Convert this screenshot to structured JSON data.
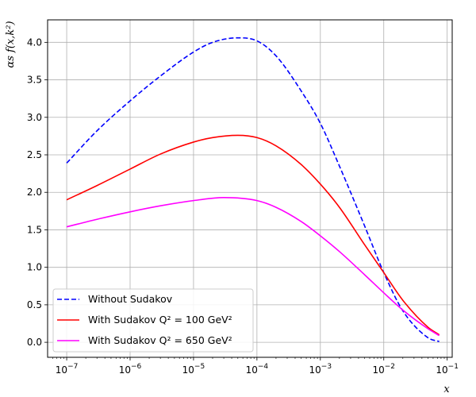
{
  "chart_data": {
    "type": "line",
    "xscale": "log",
    "xlim": [
      5e-08,
      0.12
    ],
    "ylim": [
      -0.2,
      4.3
    ],
    "xlabel": "x",
    "ylabel": "αs f(x,k²)",
    "grid": true,
    "legend_position": "lower-left",
    "x_ticks": [
      {
        "value": 1e-07,
        "base": "10",
        "exp": "−7"
      },
      {
        "value": 1e-06,
        "base": "10",
        "exp": "−6"
      },
      {
        "value": 1e-05,
        "base": "10",
        "exp": "−5"
      },
      {
        "value": 0.0001,
        "base": "10",
        "exp": "−4"
      },
      {
        "value": 0.001,
        "base": "10",
        "exp": "−3"
      },
      {
        "value": 0.01,
        "base": "10",
        "exp": "−2"
      },
      {
        "value": 0.1,
        "base": "10",
        "exp": "−1"
      }
    ],
    "y_ticks": [
      {
        "value": 0.0,
        "label": "0.0"
      },
      {
        "value": 0.5,
        "label": "0.5"
      },
      {
        "value": 1.0,
        "label": "1.0"
      },
      {
        "value": 1.5,
        "label": "1.5"
      },
      {
        "value": 2.0,
        "label": "2.0"
      },
      {
        "value": 2.5,
        "label": "2.5"
      },
      {
        "value": 3.0,
        "label": "3.0"
      },
      {
        "value": 3.5,
        "label": "3.5"
      },
      {
        "value": 4.0,
        "label": "4.0"
      }
    ],
    "series": [
      {
        "name": "Without Sudakov",
        "color": "#0000ff",
        "dash": true,
        "x": [
          1e-07,
          3e-07,
          1e-06,
          3e-06,
          1e-05,
          2e-05,
          5e-05,
          0.0001,
          0.0002,
          0.0005,
          0.001,
          0.002,
          0.005,
          0.01,
          0.02,
          0.05,
          0.075
        ],
        "y": [
          2.39,
          2.82,
          3.22,
          3.55,
          3.87,
          4.0,
          4.06,
          4.02,
          3.82,
          3.35,
          2.92,
          2.35,
          1.55,
          0.93,
          0.42,
          0.06,
          0.01
        ]
      },
      {
        "name": "With Sudakov",
        "legend_math": "Q² = 100 GeV²",
        "color": "#ff0000",
        "dash": false,
        "x": [
          1e-07,
          3e-07,
          1e-06,
          3e-06,
          1e-05,
          2e-05,
          5e-05,
          0.0001,
          0.0002,
          0.0005,
          0.001,
          0.002,
          0.005,
          0.01,
          0.02,
          0.05,
          0.075
        ],
        "y": [
          1.9,
          2.09,
          2.31,
          2.51,
          2.67,
          2.73,
          2.76,
          2.73,
          2.62,
          2.37,
          2.11,
          1.8,
          1.3,
          0.93,
          0.56,
          0.2,
          0.1
        ]
      },
      {
        "name": "With Sudakov",
        "legend_math": "Q² = 650 GeV²",
        "color": "#ff00ff",
        "dash": false,
        "x": [
          1e-07,
          3e-07,
          1e-06,
          3e-06,
          1e-05,
          3e-05,
          0.0001,
          0.0002,
          0.0005,
          0.001,
          0.002,
          0.005,
          0.01,
          0.02,
          0.05,
          0.075
        ],
        "y": [
          1.54,
          1.64,
          1.74,
          1.82,
          1.89,
          1.93,
          1.89,
          1.8,
          1.61,
          1.42,
          1.21,
          0.9,
          0.66,
          0.43,
          0.18,
          0.09
        ]
      }
    ]
  }
}
